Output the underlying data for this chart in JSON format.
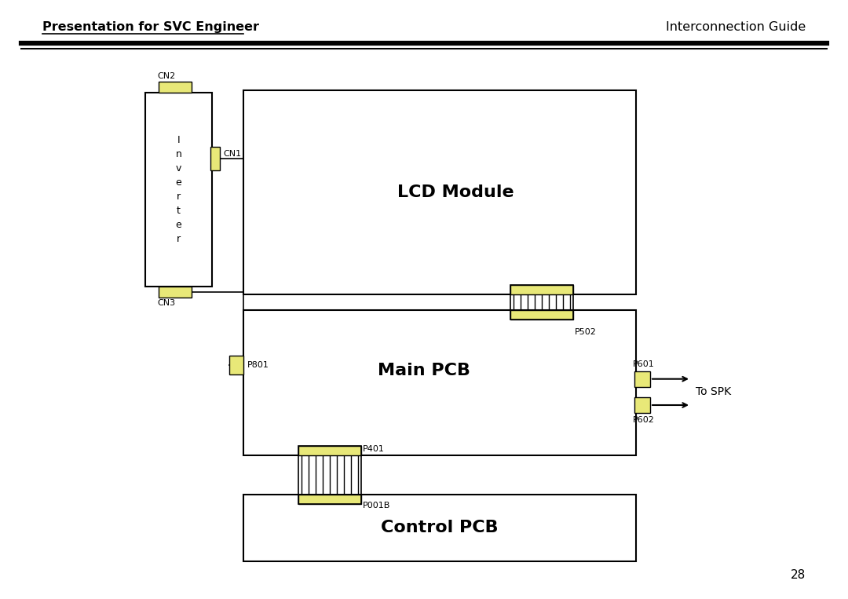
{
  "title_left": "Presentation for SVC Engineer",
  "title_right": "Interconnection Guide",
  "page_number": "28",
  "bg_color": "#ffffff",
  "yellow_fill": "#e8e878",
  "black": "#000000",
  "lcd_label": "LCD Module",
  "main_label": "Main PCB",
  "control_label": "Control PCB",
  "inverter_label": "I\nn\nv\ne\nr\nt\ne\nr"
}
